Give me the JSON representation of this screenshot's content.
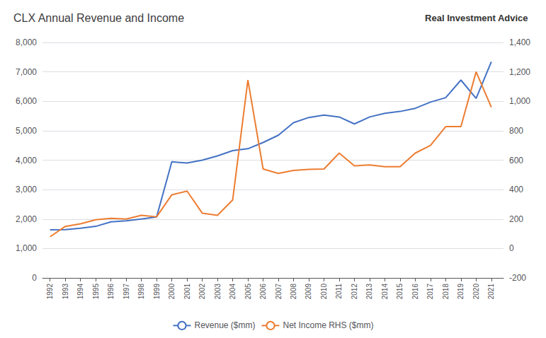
{
  "chart_data": {
    "type": "line",
    "title": "CLX Annual Revenue and Income",
    "annotations": [
      "Real Investment Advice"
    ],
    "x": [
      1992,
      1993,
      1994,
      1995,
      1996,
      1997,
      1998,
      1999,
      2000,
      2001,
      2002,
      2003,
      2004,
      2005,
      2006,
      2007,
      2008,
      2009,
      2010,
      2011,
      2012,
      2013,
      2014,
      2015,
      2016,
      2017,
      2018,
      2019,
      2020,
      2021
    ],
    "series": [
      {
        "name": "Revenue ($mm)",
        "color": "#4472c4",
        "values": [
          1634,
          1640,
          1685,
          1751,
          1905,
          1938,
          1998,
          2070,
          3944,
          3903,
          4000,
          4144,
          4324,
          4388,
          4600,
          4847,
          5273,
          5450,
          5534,
          5468,
          5231,
          5468,
          5591,
          5655,
          5761,
          5973,
          6124,
          6721,
          6100,
          7341
        ]
      },
      {
        "name": "Net Income RHS ($mm)",
        "color": "#ed7d31",
        "axis": "y2",
        "values": [
          80,
          150,
          168,
          195,
          205,
          200,
          225,
          215,
          365,
          390,
          240,
          225,
          330,
          1145,
          540,
          510,
          530,
          537,
          540,
          648,
          562,
          567,
          555,
          555,
          648,
          700,
          828,
          828,
          1200,
          960
        ]
      }
    ],
    "xlim": [
      1991.5,
      2021.8
    ],
    "xticks": [
      1992,
      1993,
      1994,
      1995,
      1996,
      1997,
      1998,
      1999,
      2000,
      2001,
      2002,
      2003,
      2004,
      2005,
      2006,
      2007,
      2008,
      2009,
      2010,
      2011,
      2012,
      2013,
      2014,
      2015,
      2016,
      2017,
      2018,
      2019,
      2020,
      2021
    ],
    "ylim": [
      0,
      8000
    ],
    "yticks": [
      0,
      {
        "value": 1000,
        "label": "1,000"
      },
      {
        "value": 2000,
        "label": "2,000"
      },
      {
        "value": 3000,
        "label": "3,000"
      },
      {
        "value": 4000,
        "label": "4,000"
      },
      {
        "value": 5000,
        "label": "5,000"
      },
      {
        "value": 6000,
        "label": "6,000"
      },
      {
        "value": 7000,
        "label": "7,000"
      },
      {
        "value": 8000,
        "label": "8,000"
      }
    ],
    "y2lim": [
      -200,
      1400
    ],
    "y2ticks": [
      -200,
      0,
      200,
      400,
      600,
      800,
      {
        "value": 1000,
        "label": "1,000"
      },
      {
        "value": 1200,
        "label": "1,200"
      },
      {
        "value": 1400,
        "label": "1,400"
      }
    ],
    "grid": true,
    "legend": "bottom"
  }
}
